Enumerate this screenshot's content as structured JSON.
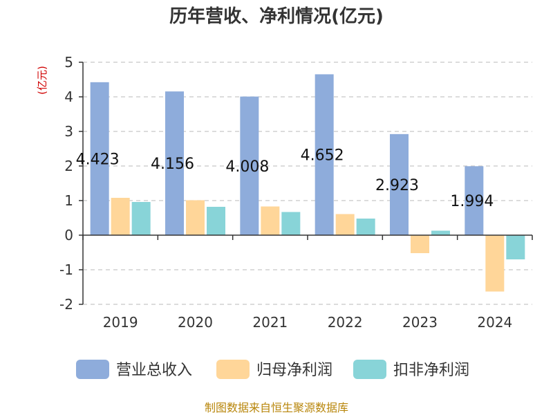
{
  "chart_data": {
    "type": "bar",
    "title": "历年营收、净利情况(亿元)",
    "ylabel": "(亿元)",
    "xlabel": "",
    "categories": [
      "2019",
      "2020",
      "2021",
      "2022",
      "2023",
      "2024"
    ],
    "ylim": [
      -2,
      5
    ],
    "yticks": [
      -2,
      -1,
      0,
      1,
      2,
      3,
      4,
      5
    ],
    "grid": true,
    "legend_position": "bottom",
    "series": [
      {
        "name": "营业总收入",
        "color": "#8eacdb",
        "values": [
          4.423,
          4.156,
          4.008,
          4.652,
          2.923,
          1.994
        ],
        "show_labels": true
      },
      {
        "name": "归母净利润",
        "color": "#ffd699",
        "values": [
          1.08,
          1.01,
          0.83,
          0.61,
          -0.52,
          -1.63
        ],
        "show_labels": false
      },
      {
        "name": "扣非净利润",
        "color": "#88d4d8",
        "values": [
          0.96,
          0.82,
          0.67,
          0.48,
          0.13,
          -0.7
        ],
        "show_labels": false
      }
    ],
    "data_labels": [
      "4.423",
      "4.156",
      "4.008",
      "4.652",
      "2.923",
      "1.994"
    ],
    "source": "制图数据来自恒生聚源数据库"
  }
}
